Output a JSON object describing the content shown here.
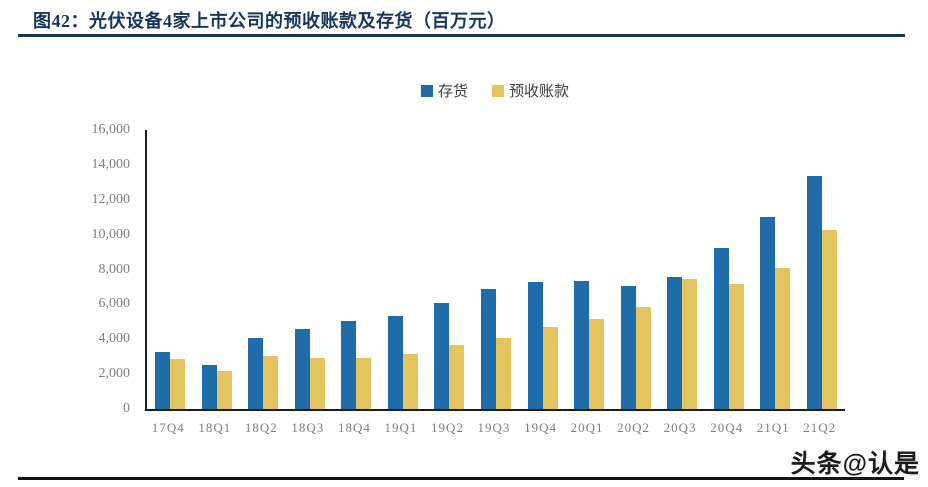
{
  "figure": {
    "title": "图42：光伏设备4家上市公司的预收账款及存货（百万元）"
  },
  "watermark": "头条@认是",
  "colors": {
    "title_navy": "#17365D",
    "inventory_blue": "#1F6CA9",
    "advance_yellow": "#E3C45F",
    "axis_line": "#1C1C1C",
    "tick_gray": "#7E7E7E"
  },
  "chart_data": {
    "type": "bar",
    "title": "光伏设备4家上市公司的预收账款及存货（百万元）",
    "xlabel": "",
    "ylabel": "",
    "ylim": [
      0,
      16000
    ],
    "ytick_step": 2000,
    "ytick_labels_top_down": [
      "16,000",
      "14,000",
      "12,000",
      "10,000",
      "8,000",
      "6,000",
      "4,000",
      "2,000",
      "0"
    ],
    "grid": false,
    "legend_position": "top-center",
    "categories": [
      "17Q4",
      "18Q1",
      "18Q2",
      "18Q3",
      "18Q4",
      "19Q1",
      "19Q2",
      "19Q3",
      "19Q4",
      "20Q1",
      "20Q2",
      "20Q3",
      "20Q4",
      "21Q1",
      "21Q2"
    ],
    "series": [
      {
        "name": "存货",
        "color": "#1F6CA9",
        "values": [
          3250,
          2520,
          4080,
          4600,
          5050,
          5350,
          6100,
          6900,
          7270,
          7350,
          7080,
          7580,
          9250,
          11000,
          13350
        ]
      },
      {
        "name": "预收账款",
        "color": "#E3C45F",
        "values": [
          2880,
          2200,
          3050,
          2950,
          2950,
          3150,
          3680,
          4050,
          4680,
          5150,
          5870,
          7440,
          7180,
          8080,
          10250
        ]
      }
    ]
  }
}
